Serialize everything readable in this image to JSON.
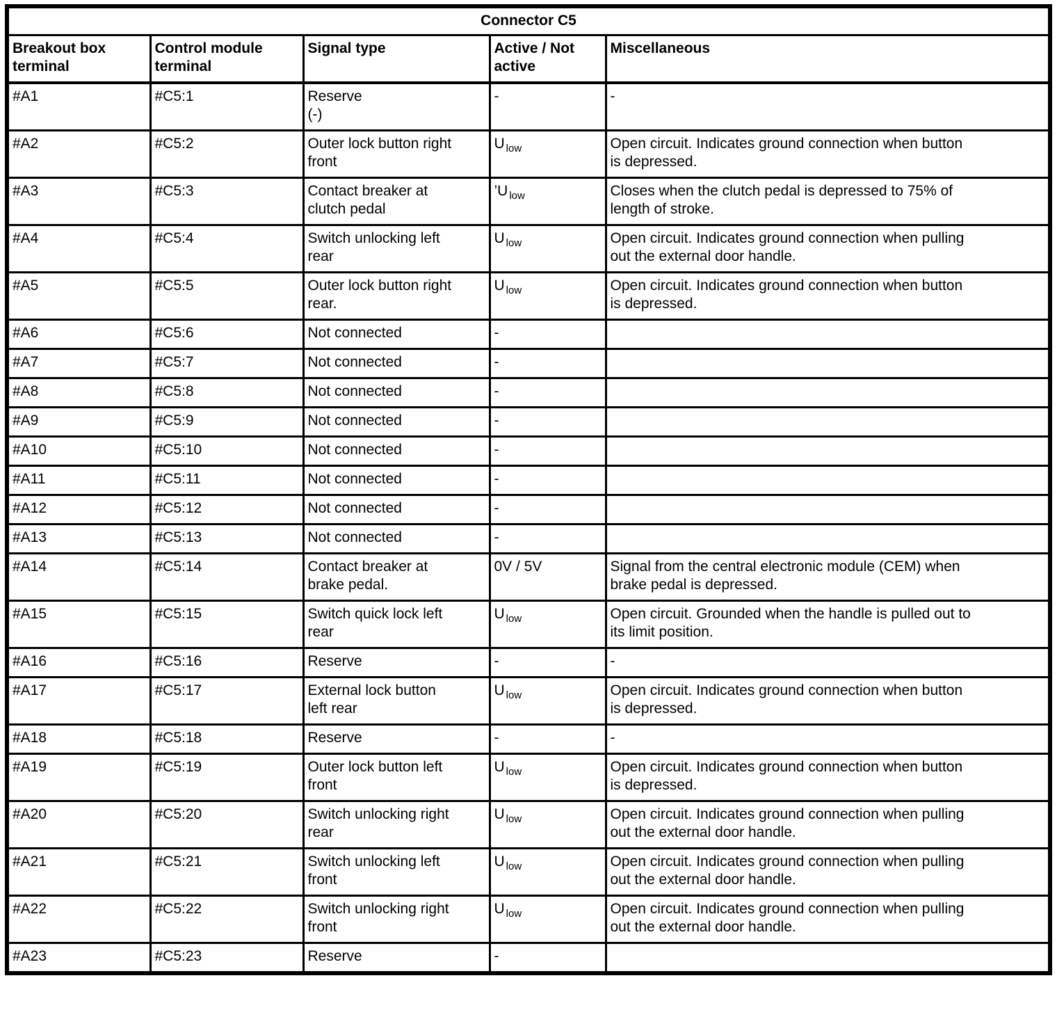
{
  "colors": {
    "ink": "#000000",
    "paper": "#ffffff"
  },
  "table": {
    "title": "Connector C5",
    "columns": [
      "Breakout box\nterminal",
      "Control module\nterminal",
      "Signal type",
      "Active / Not\nactive",
      "Miscellaneous"
    ],
    "rows": [
      {
        "breakout": "#A1",
        "module": "#C5:1",
        "signal": "Reserve\n(-)",
        "active": {
          "base": "-"
        },
        "misc": "-"
      },
      {
        "breakout": "#A2",
        "module": "#C5:2",
        "signal": "Outer lock button right\nfront",
        "active": {
          "base": "U",
          "sub": "low"
        },
        "misc": "Open circuit. Indicates ground connection when button\nis depressed."
      },
      {
        "breakout": "#A3",
        "module": "#C5:3",
        "signal": "Contact breaker at\nclutch pedal",
        "active": {
          "base": "’U",
          "sub": "low"
        },
        "misc": "Closes when the clutch pedal is depressed to 75% of\nlength of stroke."
      },
      {
        "breakout": "#A4",
        "module": "#C5:4",
        "signal": "Switch unlocking left\nrear",
        "active": {
          "base": "U",
          "sub": "low"
        },
        "misc": "Open circuit. Indicates ground connection when pulling\nout the external door handle."
      },
      {
        "breakout": "#A5",
        "module": "#C5:5",
        "signal": "Outer lock button right\nrear.",
        "active": {
          "base": "U",
          "sub": "low"
        },
        "misc": "Open circuit. Indicates ground connection when button\nis depressed."
      },
      {
        "breakout": "#A6",
        "module": "#C5:6",
        "signal": "Not connected",
        "active": {
          "base": "-"
        },
        "misc": ""
      },
      {
        "breakout": "#A7",
        "module": "#C5:7",
        "signal": "Not connected",
        "active": {
          "base": "-"
        },
        "misc": ""
      },
      {
        "breakout": "#A8",
        "module": "#C5:8",
        "signal": "Not connected",
        "active": {
          "base": "-"
        },
        "misc": ""
      },
      {
        "breakout": "#A9",
        "module": "#C5:9",
        "signal": "Not connected",
        "active": {
          "base": "-"
        },
        "misc": ""
      },
      {
        "breakout": "#A10",
        "module": "#C5:10",
        "signal": "Not connected",
        "active": {
          "base": "-"
        },
        "misc": ""
      },
      {
        "breakout": "#A11",
        "module": "#C5:11",
        "signal": "Not connected",
        "active": {
          "base": "-"
        },
        "misc": ""
      },
      {
        "breakout": "#A12",
        "module": "#C5:12",
        "signal": "Not connected",
        "active": {
          "base": "-"
        },
        "misc": ""
      },
      {
        "breakout": "#A13",
        "module": "#C5:13",
        "signal": "Not connected",
        "active": {
          "base": "-"
        },
        "misc": ""
      },
      {
        "breakout": "#A14",
        "module": "#C5:14",
        "signal": "Contact breaker at\nbrake pedal.",
        "active": {
          "base": "0V / 5V"
        },
        "misc": "Signal from the central electronic module (CEM) when\nbrake pedal is depressed."
      },
      {
        "breakout": "#A15",
        "module": "#C5:15",
        "signal": "Switch quick lock left\nrear",
        "active": {
          "base": "U",
          "sub": "low"
        },
        "misc": "Open circuit. Grounded when the handle is pulled out to\nits limit position."
      },
      {
        "breakout": "#A16",
        "module": "#C5:16",
        "signal": "Reserve",
        "active": {
          "base": "-"
        },
        "misc": "-"
      },
      {
        "breakout": "#A17",
        "module": "#C5:17",
        "signal": "External lock button\nleft rear",
        "active": {
          "base": "U",
          "sub": "low"
        },
        "misc": "Open circuit. Indicates ground connection when button\nis depressed."
      },
      {
        "breakout": "#A18",
        "module": "#C5:18",
        "signal": "Reserve",
        "active": {
          "base": "-"
        },
        "misc": "-"
      },
      {
        "breakout": "#A19",
        "module": "#C5:19",
        "signal": "Outer lock button left\nfront",
        "active": {
          "base": "U",
          "sub": "low"
        },
        "misc": "Open circuit. Indicates ground connection when button\nis depressed."
      },
      {
        "breakout": "#A20",
        "module": "#C5:20",
        "signal": "Switch unlocking right\nrear",
        "active": {
          "base": "U",
          "sub": "low"
        },
        "misc": "Open circuit. Indicates ground connection when pulling\nout the external door handle."
      },
      {
        "breakout": "#A21",
        "module": "#C5:21",
        "signal": "Switch unlocking left\nfront",
        "active": {
          "base": "U",
          "sub": "low"
        },
        "misc": "Open circuit. Indicates ground connection when pulling\nout the external door handle."
      },
      {
        "breakout": "#A22",
        "module": "#C5:22",
        "signal": "Switch unlocking right\nfront",
        "active": {
          "base": "U",
          "sub": "low"
        },
        "misc": "Open circuit. Indicates ground connection when pulling\nout the external door handle."
      },
      {
        "breakout": "#A23",
        "module": "#C5:23",
        "signal": "Reserve",
        "active": {
          "base": "-"
        },
        "misc": ""
      }
    ]
  }
}
